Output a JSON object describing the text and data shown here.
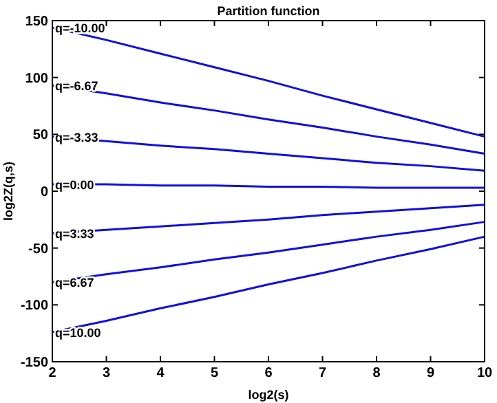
{
  "chart_data": {
    "type": "line",
    "title": "Partition function",
    "xlabel": "log2(s)",
    "ylabel": "log2Z(q,s)",
    "x": [
      2,
      3,
      4,
      5,
      6,
      7,
      8,
      9,
      10
    ],
    "series": [
      {
        "name": "q=-10.00",
        "color": "#1010dd",
        "values": [
          144,
          133,
          121,
          109,
          97,
          84,
          72,
          60,
          48
        ]
      },
      {
        "name": "q=-6.67",
        "color": "#1010dd",
        "values": [
          93,
          86,
          78,
          71,
          63,
          56,
          48,
          41,
          33
        ]
      },
      {
        "name": "q=-3.33",
        "color": "#1010dd",
        "values": [
          48,
          44,
          40,
          37,
          33,
          29,
          25,
          22,
          18
        ]
      },
      {
        "name": "q=0.00",
        "color": "#1010dd",
        "values": [
          6,
          6,
          5,
          5,
          4,
          4,
          3,
          3,
          3
        ]
      },
      {
        "name": "q=3.33",
        "color": "#1010dd",
        "values": [
          -37,
          -34,
          -31,
          -28,
          -25,
          -21,
          -18,
          -15,
          -12
        ]
      },
      {
        "name": "q=6.67",
        "color": "#1010dd",
        "values": [
          -80,
          -73,
          -67,
          -60,
          -54,
          -47,
          -40,
          -34,
          -27
        ]
      },
      {
        "name": "q=10.00",
        "color": "#1010dd",
        "values": [
          -124,
          -114,
          -103,
          -93,
          -82,
          -72,
          -61,
          -51,
          -40
        ]
      }
    ],
    "xlim": [
      2,
      10
    ],
    "xticks": [
      2,
      3,
      4,
      5,
      6,
      7,
      8,
      9,
      10
    ],
    "ylim": [
      -150,
      150
    ],
    "yticks": [
      -150,
      -100,
      -50,
      0,
      50,
      100,
      150
    ],
    "marker": "none",
    "line_style": "solid"
  }
}
